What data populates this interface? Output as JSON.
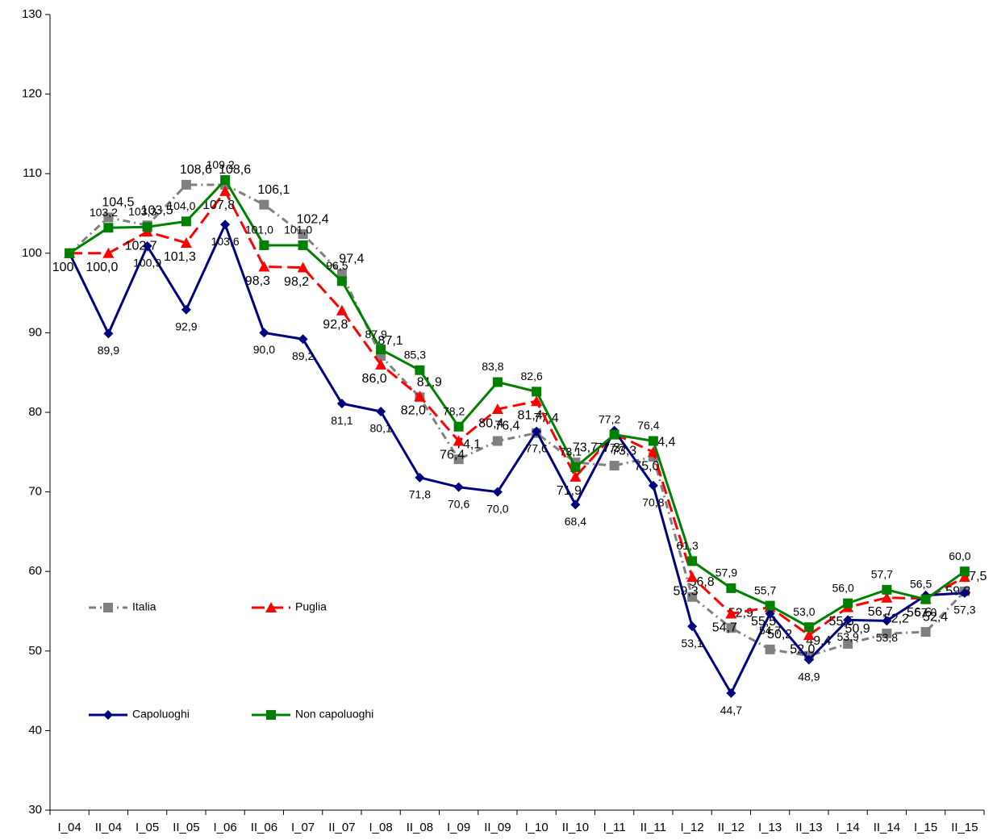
{
  "chart_data": {
    "type": "line",
    "categories": [
      "I_04",
      "II_04",
      "I_05",
      "II_05",
      "I_06",
      "II_06",
      "I_07",
      "II_07",
      "I_08",
      "II_08",
      "I_09",
      "II_09",
      "I_10",
      "II_10",
      "I_11",
      "II_11",
      "I_12",
      "II_12",
      "I_13",
      "II_13",
      "I_14",
      "II_14",
      "I_15",
      "II_15"
    ],
    "ylim": [
      30,
      130
    ],
    "yticks": [
      30,
      40,
      50,
      60,
      70,
      80,
      90,
      100,
      110,
      120,
      130
    ],
    "grid": false,
    "series": [
      {
        "name": "Italia",
        "color": "#808080",
        "values": [
          100,
          104.5,
          103.5,
          108.6,
          108.6,
          106.1,
          102.4,
          97.4,
          87.1,
          81.9,
          74.1,
          76.4,
          77.4,
          73.7,
          73.3,
          74.4,
          56.8,
          52.9,
          50.2,
          49.4,
          50.9,
          52.2,
          52.4,
          57.5
        ],
        "value_labels": [
          null,
          "104,5",
          "103,5",
          "108,6",
          "108,6",
          "106,1",
          "102,4",
          "97,4",
          "87,1",
          "81,9",
          "74,1",
          "76,4",
          "77,4",
          "73,7",
          "73,3",
          "74,4",
          "56,8",
          "52,9",
          "50,2",
          "49,4",
          "50,9",
          "52,2",
          "52,4",
          "57,5"
        ]
      },
      {
        "name": "Puglia",
        "color": "#ff0000",
        "values": [
          100,
          100.0,
          102.7,
          101.3,
          107.8,
          98.3,
          98.2,
          92.8,
          86.0,
          82.0,
          76.4,
          80.4,
          81.4,
          71.9,
          77.3,
          75.0,
          59.3,
          54.7,
          55.5,
          52.0,
          55.5,
          56.7,
          56.6,
          59.3
        ],
        "value_labels": [
          "100",
          "100,0",
          "102,7",
          "101,3",
          "107,8",
          "98,3",
          "98,2",
          "92,8",
          "86,0",
          "82,0",
          "76,4",
          "80,4",
          "81,4",
          "71,9",
          "77,3",
          "75,0",
          "59,3",
          "54,7",
          "55,5",
          "52,0",
          "55,5",
          "56,7",
          "56,6",
          "59,3"
        ]
      },
      {
        "name": "Capoluoghi",
        "color": "#000080",
        "values": [
          100,
          89.9,
          100.9,
          92.9,
          103.6,
          90.0,
          89.2,
          81.1,
          80.1,
          71.8,
          70.6,
          70.0,
          77.6,
          68.4,
          77.7,
          70.8,
          53.1,
          44.7,
          54.7,
          48.9,
          53.9,
          53.8,
          57.0,
          57.3
        ],
        "value_labels": [
          null,
          "89,9",
          "100,9",
          "92,9",
          "103,6",
          "90,0",
          "89,2",
          "81,1",
          "80,1",
          "71,8",
          "70,6",
          "70,0",
          "77,6",
          "68,4",
          "77,7",
          "70,8",
          "53,1",
          "44,7",
          "54,7",
          "48,9",
          "53,9",
          "53,8",
          "57,0",
          "57,3"
        ]
      },
      {
        "name": "Non capoluoghi",
        "color": "#008000",
        "values": [
          100,
          103.2,
          103.3,
          104.0,
          109.2,
          101.0,
          101.0,
          96.5,
          87.9,
          85.3,
          78.2,
          83.8,
          82.6,
          73.1,
          77.2,
          76.4,
          61.3,
          57.9,
          55.7,
          53.0,
          56.0,
          57.7,
          56.5,
          60.0
        ],
        "value_labels": [
          null,
          "103,2",
          "103,3",
          "104,0",
          "109,2",
          "101,0",
          "101,0",
          "96,5",
          "87,9",
          "85,3",
          "78,2",
          "83,8",
          "82,6",
          "73,1",
          "77,2",
          "76,4",
          "61,3",
          "57,9",
          "55,7",
          "53,0",
          "56,0",
          "57,7",
          "56,5",
          "60,0"
        ]
      }
    ]
  }
}
